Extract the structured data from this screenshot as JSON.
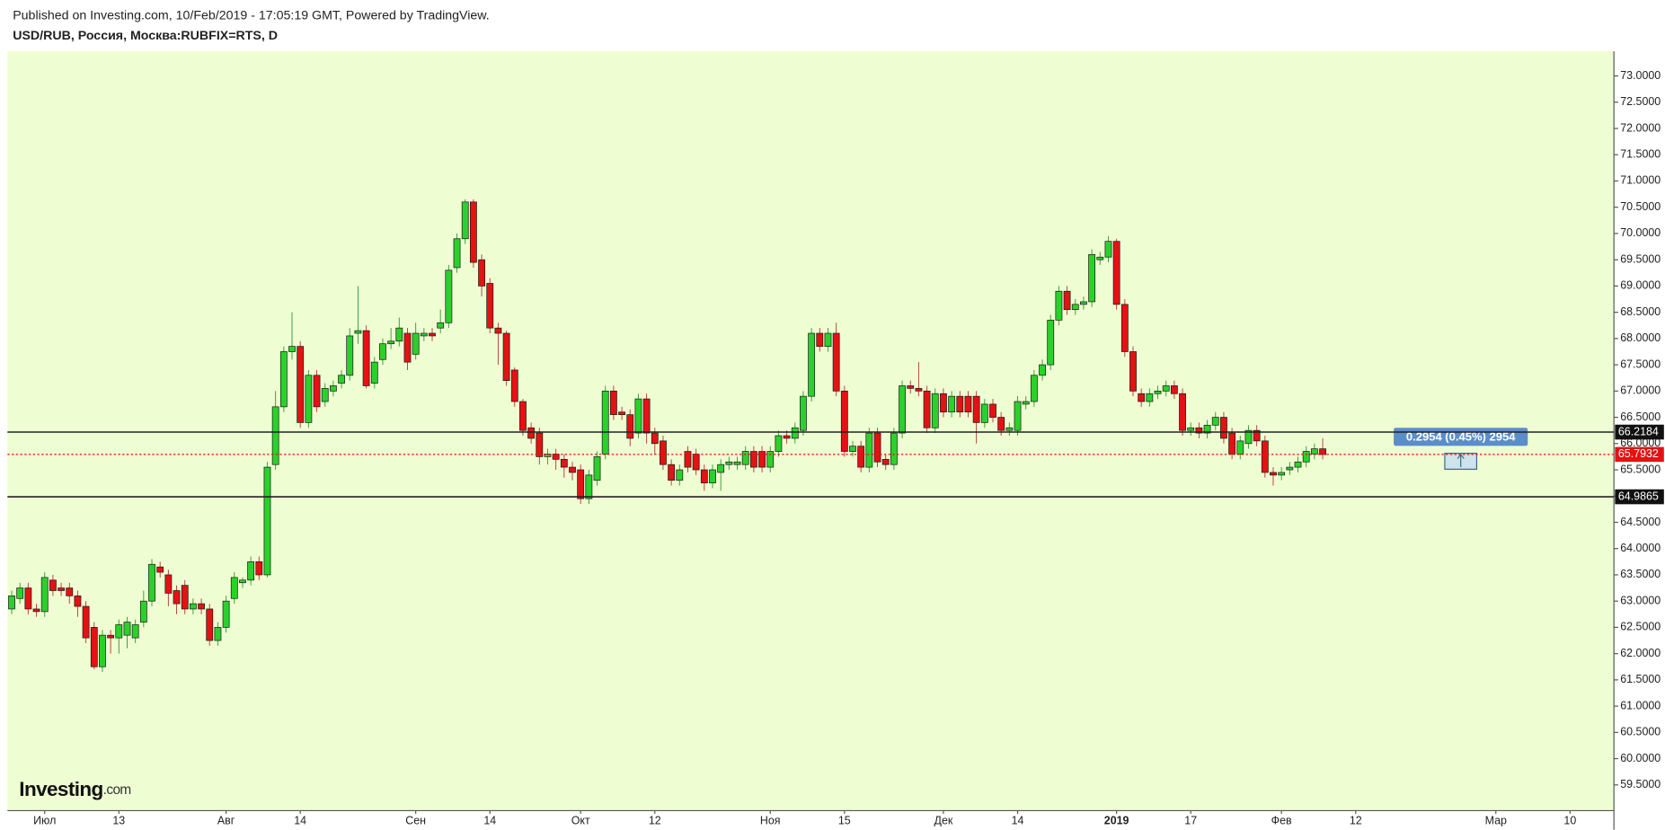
{
  "chart_data": {
    "type": "candlestick",
    "published": "Published on Investing.com, 10/Feb/2019 - 17:05:19 GMT, Powered by TradingView.",
    "title": "USD/RUB, Россия, Москва:RUBFIX=RTS, D",
    "logo": "Investing",
    "logo_suffix": ".com",
    "measure_label": "0.2954 (0.45%) 2954",
    "up_color": "#2bd12b",
    "down_color": "#e41212",
    "horizontal_lines": [
      66.2184,
      64.9865
    ],
    "last_price": 65.7932,
    "ylim": [
      59.01,
      73.47
    ],
    "yticks": [
      {
        "value": 59.5,
        "label": "59.5000"
      },
      {
        "value": 60,
        "label": "60.0000"
      },
      {
        "value": 60.5,
        "label": "60.5000"
      },
      {
        "value": 61,
        "label": "61.0000"
      },
      {
        "value": 61.5,
        "label": "61.5000"
      },
      {
        "value": 62,
        "label": "62.0000"
      },
      {
        "value": 62.5,
        "label": "62.5000"
      },
      {
        "value": 63,
        "label": "63.0000"
      },
      {
        "value": 63.5,
        "label": "63.5000"
      },
      {
        "value": 64,
        "label": "64.0000"
      },
      {
        "value": 64.5,
        "label": "64.5000"
      },
      {
        "value": 65,
        "label": "65.0000"
      },
      {
        "value": 65.5,
        "label": "65.5000"
      },
      {
        "value": 66,
        "label": "66.0000"
      },
      {
        "value": 66.5,
        "label": "66.5000"
      },
      {
        "value": 67,
        "label": "67.0000"
      },
      {
        "value": 67.5,
        "label": "67.5000"
      },
      {
        "value": 68,
        "label": "68.0000"
      },
      {
        "value": 68.5,
        "label": "68.5000"
      },
      {
        "value": 69,
        "label": "69.0000"
      },
      {
        "value": 69.5,
        "label": "69.5000"
      },
      {
        "value": 70,
        "label": "70.0000"
      },
      {
        "value": 70.5,
        "label": "70.5000"
      },
      {
        "value": 71,
        "label": "71.0000"
      },
      {
        "value": 71.5,
        "label": "71.5000"
      },
      {
        "value": 72,
        "label": "72.0000"
      },
      {
        "value": 72.5,
        "label": "72.5000"
      },
      {
        "value": 73,
        "label": "73.0000"
      }
    ],
    "categories": [
      null,
      null,
      null,
      null,
      "Июл",
      null,
      null,
      null,
      null,
      null,
      null,
      null,
      null,
      "13",
      null,
      null,
      null,
      null,
      null,
      null,
      null,
      null,
      null,
      null,
      null,
      null,
      "Авг",
      null,
      null,
      null,
      null,
      null,
      null,
      null,
      null,
      "14",
      null,
      null,
      null,
      null,
      null,
      null,
      null,
      null,
      null,
      null,
      null,
      null,
      null,
      "Сен",
      null,
      null,
      null,
      null,
      null,
      null,
      null,
      null,
      "14",
      null,
      null,
      null,
      null,
      null,
      null,
      null,
      null,
      null,
      null,
      "Окт",
      null,
      null,
      null,
      null,
      null,
      null,
      null,
      null,
      "12",
      null,
      null,
      null,
      null,
      null,
      null,
      null,
      null,
      null,
      null,
      null,
      null,
      null,
      "Ноя",
      null,
      null,
      null,
      null,
      null,
      null,
      null,
      null,
      "15",
      null,
      null,
      null,
      null,
      null,
      null,
      null,
      null,
      null,
      null,
      null,
      "Дек",
      null,
      null,
      null,
      null,
      null,
      null,
      null,
      null,
      "14",
      null,
      null,
      null,
      null,
      null,
      null,
      null,
      null,
      null,
      null,
      null,
      "2019",
      null,
      null,
      null,
      null,
      null,
      null,
      null,
      null,
      "17",
      null,
      null,
      null,
      null,
      null,
      null,
      null,
      null,
      null,
      null,
      "Фев",
      null,
      null,
      null,
      null,
      null,
      null,
      null,
      null,
      "12",
      null,
      null,
      null,
      null,
      null,
      null,
      null,
      null,
      null,
      null,
      null,
      null,
      null,
      null,
      null,
      null,
      "Мар",
      null,
      null,
      null,
      null,
      null,
      null,
      null,
      null,
      "10",
      null,
      null,
      null,
      null,
      null
    ],
    "open": [
      62.85,
      63.05,
      63.25,
      62.85,
      62.8,
      63.4,
      63.25,
      63.25,
      63.1,
      62.9,
      62.5,
      61.75,
      62.35,
      62.3,
      62.35,
      62.3,
      62.6,
      63.0,
      63.65,
      63.5,
      63.2,
      63.3,
      62.85,
      62.95,
      62.85,
      62.25,
      62.5,
      63.05,
      63.35,
      63.4,
      63.75,
      63.5,
      65.6,
      66.7,
      67.75,
      67.85,
      66.4,
      67.3,
      66.8,
      67.0,
      67.15,
      67.3,
      68.1,
      68.15,
      67.15,
      67.6,
      67.9,
      67.95,
      68.1,
      67.7,
      68.05,
      68.1,
      68.2,
      68.3,
      69.35,
      69.9,
      70.6,
      69.5,
      69.05,
      68.2,
      68.1,
      67.4,
      66.8,
      66.3,
      66.2,
      65.75,
      65.8,
      65.7,
      65.55,
      65.5,
      64.95,
      65.3,
      65.8,
      67.0,
      66.6,
      66.55,
      66.2,
      66.85,
      66.2,
      66.05,
      65.6,
      65.3,
      65.85,
      65.8,
      65.5,
      65.25,
      65.45,
      65.6,
      65.6,
      65.6,
      65.85,
      65.85,
      65.55,
      65.85,
      66.15,
      66.1,
      66.25,
      66.9,
      68.1,
      67.85,
      68.1,
      67.0,
      65.85,
      65.95,
      65.55,
      66.2,
      65.7,
      65.6,
      66.2,
      67.1,
      67.05,
      67.0,
      66.3,
      66.95,
      66.6,
      66.9,
      66.9,
      66.9,
      66.4,
      66.75,
      66.5,
      66.25,
      66.25,
      66.75,
      66.8,
      67.3,
      67.5,
      68.35,
      68.9,
      68.55,
      68.65,
      68.7,
      69.5,
      69.55,
      69.85,
      68.65,
      67.75,
      66.95,
      66.8,
      66.95,
      67.0,
      67.1,
      66.95,
      66.25,
      66.3,
      66.2,
      66.35,
      66.5,
      66.2,
      65.8,
      66.0,
      66.25,
      66.05,
      65.45,
      65.4,
      65.5,
      65.55,
      65.65,
      65.8,
      65.9,
      null,
      null,
      null,
      null,
      null,
      null,
      null,
      null,
      null,
      null,
      null,
      null,
      null,
      null,
      null,
      null,
      null,
      null,
      null,
      null,
      null,
      null,
      null,
      null,
      null,
      null,
      null,
      null,
      null,
      null,
      null,
      null,
      null,
      null,
      null
    ],
    "high": [
      63.2,
      63.35,
      63.35,
      62.95,
      63.55,
      63.5,
      63.35,
      63.35,
      63.2,
      63.0,
      62.6,
      62.45,
      62.45,
      62.65,
      62.7,
      62.65,
      63.2,
      63.8,
      63.75,
      63.6,
      63.3,
      63.4,
      63.05,
      63.05,
      62.95,
      62.6,
      63.1,
      63.55,
      63.45,
      63.85,
      63.85,
      65.65,
      67.0,
      67.85,
      68.5,
      67.95,
      67.4,
      67.4,
      67.15,
      67.2,
      67.4,
      68.2,
      69.0,
      68.25,
      67.65,
      68.0,
      68.2,
      68.4,
      68.2,
      68.3,
      68.2,
      68.2,
      68.55,
      69.4,
      70.0,
      70.65,
      70.65,
      69.6,
      69.15,
      68.3,
      68.15,
      67.45,
      66.85,
      66.4,
      66.3,
      65.9,
      65.9,
      65.8,
      65.65,
      65.6,
      65.5,
      65.85,
      67.1,
      67.1,
      66.7,
      66.65,
      66.95,
      66.95,
      66.3,
      66.15,
      65.7,
      65.6,
      65.95,
      65.9,
      65.6,
      65.6,
      65.7,
      65.75,
      65.75,
      65.95,
      65.95,
      65.95,
      65.95,
      66.25,
      66.25,
      66.4,
      67.0,
      68.2,
      68.2,
      68.2,
      68.3,
      67.1,
      66.05,
      66.05,
      66.3,
      66.3,
      65.8,
      66.3,
      67.2,
      67.2,
      67.55,
      67.1,
      67.05,
      67.05,
      67.0,
      67.0,
      67.0,
      67.0,
      66.85,
      66.85,
      66.6,
      66.4,
      66.9,
      66.9,
      67.4,
      67.6,
      68.45,
      69.0,
      69.0,
      68.75,
      68.8,
      69.7,
      69.65,
      69.95,
      69.9,
      68.75,
      67.85,
      67.05,
      67.05,
      67.1,
      67.2,
      67.2,
      67.05,
      66.4,
      66.4,
      66.45,
      66.6,
      66.6,
      66.3,
      66.15,
      66.35,
      66.35,
      66.15,
      65.55,
      65.55,
      65.65,
      65.75,
      65.95,
      66.0,
      66.1,
      null,
      null,
      null,
      null,
      null,
      null,
      null,
      null,
      null,
      null,
      null,
      null,
      null,
      null,
      null,
      null,
      null,
      null,
      null,
      null,
      null,
      null,
      null,
      null,
      null,
      null,
      null,
      null,
      null,
      null,
      null,
      null,
      null,
      null,
      null
    ],
    "low": [
      62.75,
      62.95,
      62.75,
      62.7,
      62.7,
      63.1,
      63.1,
      62.95,
      62.7,
      62.2,
      61.7,
      61.65,
      62.0,
      62.0,
      62.1,
      62.2,
      62.5,
      62.9,
      63.45,
      62.9,
      62.75,
      62.75,
      62.75,
      62.75,
      62.15,
      62.15,
      62.4,
      62.95,
      63.25,
      63.3,
      63.4,
      63.45,
      65.5,
      66.6,
      67.6,
      66.3,
      66.3,
      66.6,
      66.7,
      66.9,
      67.05,
      67.2,
      67.9,
      67.05,
      67.05,
      67.5,
      67.8,
      67.85,
      67.4,
      67.6,
      67.95,
      67.95,
      68.1,
      68.2,
      69.25,
      69.8,
      69.35,
      68.8,
      68.1,
      67.5,
      67.1,
      66.7,
      66.15,
      66.0,
      65.6,
      65.6,
      65.5,
      65.35,
      65.3,
      64.85,
      64.85,
      65.2,
      65.7,
      66.45,
      66.45,
      65.95,
      66.1,
      66.0,
      65.8,
      65.5,
      65.2,
      65.2,
      65.45,
      65.4,
      65.1,
      65.15,
      65.1,
      65.5,
      65.5,
      65.5,
      65.45,
      65.45,
      65.45,
      65.75,
      66.0,
      66.0,
      66.15,
      66.8,
      67.75,
      67.75,
      66.9,
      65.75,
      65.75,
      65.45,
      65.45,
      65.55,
      65.5,
      65.5,
      66.1,
      66.95,
      66.9,
      66.2,
      66.2,
      66.5,
      66.5,
      66.5,
      66.5,
      66.0,
      66.3,
      66.4,
      66.15,
      66.15,
      66.15,
      66.65,
      66.7,
      67.2,
      67.4,
      68.25,
      68.45,
      68.45,
      68.55,
      68.6,
      69.4,
      69.45,
      68.55,
      67.65,
      66.9,
      66.7,
      66.7,
      66.85,
      66.9,
      66.85,
      66.15,
      66.15,
      66.1,
      66.1,
      66.25,
      66.0,
      65.7,
      65.7,
      65.9,
      65.95,
      65.35,
      65.2,
      65.3,
      65.4,
      65.45,
      65.55,
      65.7,
      65.7,
      null,
      null,
      null,
      null,
      null,
      null,
      null,
      null,
      null,
      null,
      null,
      null,
      null,
      null,
      null,
      null,
      null,
      null,
      null,
      null,
      null,
      null,
      null,
      null,
      null,
      null,
      null,
      null,
      null,
      null,
      null,
      null,
      null,
      null,
      null
    ],
    "close": [
      63.1,
      63.25,
      62.85,
      62.8,
      63.45,
      63.2,
      63.2,
      63.1,
      62.9,
      62.3,
      61.75,
      62.35,
      62.3,
      62.55,
      62.6,
      62.55,
      63.0,
      63.7,
      63.55,
      63.15,
      62.95,
      62.85,
      62.95,
      62.85,
      62.25,
      62.5,
      63.0,
      63.45,
      63.4,
      63.75,
      63.5,
      65.55,
      66.7,
      67.75,
      67.85,
      66.4,
      67.3,
      66.7,
      67.05,
      67.1,
      67.3,
      68.05,
      68.15,
      67.1,
      67.55,
      67.9,
      67.95,
      68.2,
      67.55,
      68.1,
      68.1,
      68.05,
      68.3,
      69.3,
      69.9,
      70.6,
      69.45,
      69.0,
      68.2,
      68.1,
      67.2,
      66.8,
      66.25,
      66.1,
      65.75,
      65.8,
      65.7,
      65.55,
      65.45,
      64.95,
      65.4,
      65.75,
      67.0,
      66.55,
      66.55,
      66.1,
      66.85,
      66.2,
      66.0,
      65.6,
      65.3,
      65.5,
      65.55,
      65.5,
      65.25,
      65.5,
      65.6,
      65.65,
      65.65,
      65.85,
      65.55,
      65.55,
      65.85,
      66.15,
      66.1,
      66.3,
      66.9,
      68.1,
      67.85,
      68.1,
      67.0,
      65.85,
      65.95,
      65.55,
      66.2,
      65.65,
      65.6,
      66.2,
      67.1,
      67.05,
      67.0,
      66.3,
      66.95,
      66.6,
      66.9,
      66.6,
      66.6,
      66.4,
      66.75,
      66.5,
      66.25,
      66.3,
      66.8,
      66.8,
      67.3,
      67.5,
      68.35,
      68.9,
      68.55,
      68.65,
      68.7,
      69.6,
      69.55,
      69.85,
      68.65,
      67.75,
      67.0,
      66.8,
      66.95,
      67.0,
      67.1,
      66.95,
      66.25,
      66.3,
      66.2,
      66.35,
      66.5,
      66.1,
      65.8,
      66.05,
      66.25,
      66.05,
      65.45,
      65.4,
      65.45,
      65.55,
      65.65,
      65.85,
      65.9,
      65.79,
      null,
      null,
      null,
      null,
      null,
      null,
      null,
      null,
      null,
      null,
      null,
      null,
      null,
      null,
      null,
      null,
      null,
      null,
      null,
      null,
      null,
      null,
      null,
      null,
      null,
      null,
      null,
      null,
      null,
      null,
      null,
      null,
      null,
      null,
      null
    ]
  }
}
